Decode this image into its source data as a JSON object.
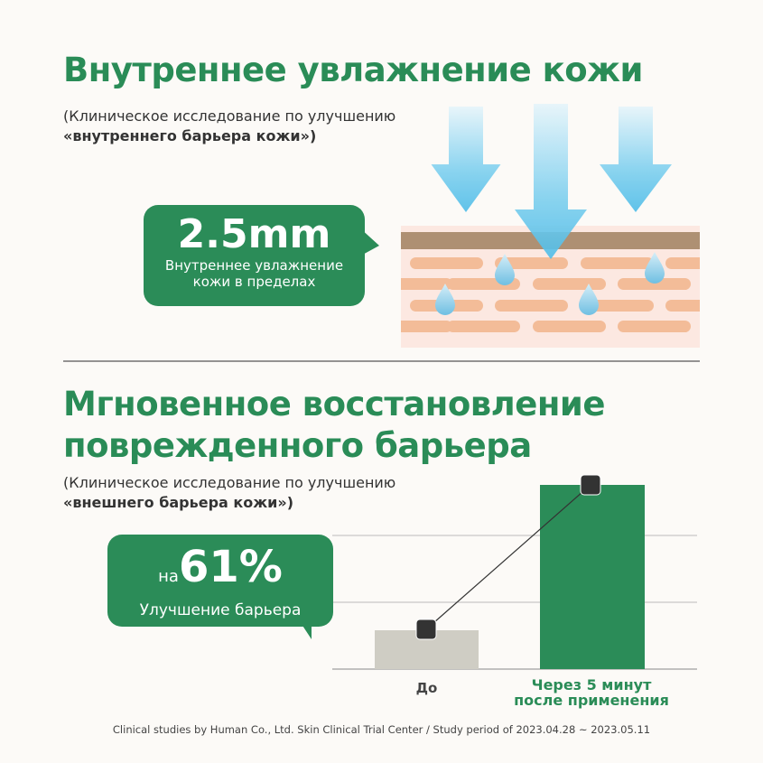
{
  "section1": {
    "title": "Внутреннее увлажнение кожи",
    "subtitle_line1": "(Клиническое исследование по улучшению",
    "subtitle_line2": "«внутреннего барьера кожи»)",
    "bubble_value": "2.5mm",
    "bubble_text_line1": "Внутреннее увлажнение",
    "bubble_text_line2": "кожи в пределах"
  },
  "section2": {
    "title_line1": "Мгновенное восстановление",
    "title_line2": "поврежденного барьера",
    "subtitle_line1": "(Клиническое исследование по улучшению",
    "subtitle_line2": "«внешнего барьера кожи»)",
    "bubble_prefix": "на",
    "bubble_value": "61%",
    "bubble_text": "Улучшение барьера"
  },
  "chart": {
    "categories": [
      "До",
      "Через 5 минут после применения"
    ],
    "category_lines": [
      "Через 5 минут",
      "после применения"
    ],
    "colors": {
      "before": "#cfcdc4",
      "after": "#2b8c58"
    }
  },
  "footer": "Clinical studies by Human Co., Ltd. Skin Clinical Trial Center / Study period of 2023.04.28 ~ 2023.05.11",
  "colors": {
    "accent": "#2a8c57",
    "arrow": "#5cc3ea",
    "skin": "#fce8e1",
    "cells": "#f3bc98",
    "top_layer": "#ae9073"
  }
}
